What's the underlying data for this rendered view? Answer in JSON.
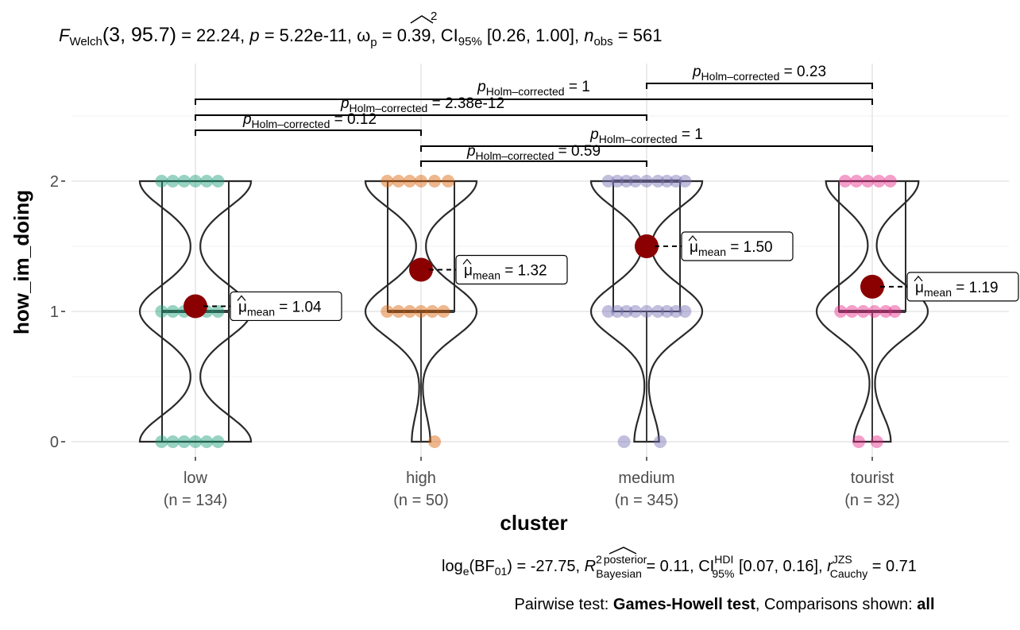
{
  "chart_data": {
    "type": "violin",
    "title": {
      "F": "F",
      "welch_sub": "Welch",
      "df": "(3, 95.7)",
      "stat": " = 22.24, ",
      "p": "p",
      "p_val": " = 5.22e-11, ",
      "omega": "ω",
      "omega_sup": "2",
      "omega_sub": "p",
      "omega_val": " = 0.39, CI",
      "ci_sub": "95%",
      "ci_val": " [0.26, 1.00], ",
      "n": "n",
      "n_sub": "obs",
      "n_val": " = 561"
    },
    "xlabel": "cluster",
    "ylabel": "how_im_doing",
    "ylim": [
      0,
      2
    ],
    "y_ticks": [
      "0",
      "1",
      "2"
    ],
    "categories": [
      {
        "name": "low",
        "n_label": "(n = 134)",
        "mean": 1.04,
        "mean_label": "1.04",
        "color": "#1B9E77",
        "q1": 0,
        "median": 1,
        "q3": 2,
        "points": [
          [
            -0.15,
            2
          ],
          [
            -0.1,
            2
          ],
          [
            -0.05,
            2
          ],
          [
            0,
            2
          ],
          [
            0.05,
            2
          ],
          [
            0.1,
            2
          ],
          [
            -0.15,
            1
          ],
          [
            -0.1,
            1
          ],
          [
            -0.05,
            1
          ],
          [
            0,
            1
          ],
          [
            0.05,
            1
          ],
          [
            0.1,
            1
          ],
          [
            -0.15,
            0
          ],
          [
            -0.1,
            0
          ],
          [
            -0.05,
            0
          ],
          [
            0,
            0
          ],
          [
            0.05,
            0
          ],
          [
            0.1,
            0
          ]
        ]
      },
      {
        "name": "high",
        "n_label": "(n = 50)",
        "mean": 1.32,
        "mean_label": "1.32",
        "color": "#D95F02",
        "q1": 1,
        "median": 1,
        "q3": 2,
        "points": [
          [
            -0.15,
            2
          ],
          [
            -0.1,
            2
          ],
          [
            -0.05,
            2
          ],
          [
            0,
            2
          ],
          [
            0.06,
            2
          ],
          [
            0.12,
            2
          ],
          [
            -0.15,
            1
          ],
          [
            -0.1,
            1
          ],
          [
            -0.05,
            1
          ],
          [
            0,
            1
          ],
          [
            0.05,
            1
          ],
          [
            0.1,
            1
          ],
          [
            0.06,
            0
          ]
        ]
      },
      {
        "name": "medium",
        "n_label": "(n = 345)",
        "mean": 1.5,
        "mean_label": "1.50",
        "color": "#7570B3",
        "q1": 1,
        "median": 2,
        "q3": 2,
        "points": [
          [
            -0.17,
            2
          ],
          [
            -0.13,
            2
          ],
          [
            -0.09,
            2
          ],
          [
            -0.05,
            2
          ],
          [
            0,
            2
          ],
          [
            0.05,
            2
          ],
          [
            0.09,
            2
          ],
          [
            0.13,
            2
          ],
          [
            0.17,
            2
          ],
          [
            -0.17,
            1
          ],
          [
            -0.13,
            1
          ],
          [
            -0.09,
            1
          ],
          [
            -0.05,
            1
          ],
          [
            0,
            1
          ],
          [
            0.05,
            1
          ],
          [
            0.09,
            1
          ],
          [
            0.13,
            1
          ],
          [
            0.17,
            1
          ],
          [
            -0.1,
            0
          ],
          [
            0.06,
            0
          ]
        ]
      },
      {
        "name": "tourist",
        "n_label": "(n = 32)",
        "mean": 1.19,
        "mean_label": "1.19",
        "color": "#E7298A",
        "q1": 1,
        "median": 1,
        "q3": 2,
        "points": [
          [
            -0.12,
            2
          ],
          [
            -0.07,
            2
          ],
          [
            -0.02,
            2
          ],
          [
            0.03,
            2
          ],
          [
            0.08,
            2
          ],
          [
            -0.14,
            1
          ],
          [
            -0.09,
            1
          ],
          [
            -0.04,
            1
          ],
          [
            0.01,
            1
          ],
          [
            0.06,
            1
          ],
          [
            0.1,
            1
          ],
          [
            -0.06,
            0
          ],
          [
            0.02,
            0
          ]
        ]
      }
    ],
    "mean_prefix": "μ",
    "mean_sub": "mean",
    "comparisons": [
      {
        "from": "low",
        "to": "tourist",
        "p": "p",
        "label_sub": "Holm–corrected",
        "value": " = 1"
      },
      {
        "from": "low",
        "to": "medium",
        "p": "p",
        "label_sub": "Holm–corrected",
        "value": " = 2.38e-12"
      },
      {
        "from": "low",
        "to": "high",
        "p": "p",
        "label_sub": "Holm–corrected",
        "value": " = 0.12"
      },
      {
        "from": "high",
        "to": "tourist",
        "p": "p",
        "label_sub": "Holm–corrected",
        "value": " = 1"
      },
      {
        "from": "high",
        "to": "medium",
        "p": "p",
        "label_sub": "Holm–corrected",
        "value": " = 0.59"
      },
      {
        "from": "medium",
        "to": "tourist",
        "p": "p",
        "label_sub": "Holm–corrected",
        "value": " = 0.23"
      }
    ],
    "subtitle": {
      "log": "log",
      "log_sub": "e",
      "bf": "(BF",
      "bf_sub": "01",
      "bf_val": ") = -27.75, ",
      "r2": "R",
      "r2_sup": "2",
      "post_sup": "posterior",
      "bayes_sub": "Bayesian",
      "r2_val": " = 0.11, CI",
      "hdi_sup": "HDI",
      "ci_sub": "95%",
      "ci_val": " [0.07, 0.16], ",
      "r": "r",
      "jzs_sup": "JZS",
      "cauchy_sub": "Cauchy",
      "r_val": " = 0.71"
    },
    "caption": {
      "prefix": "Pairwise test: ",
      "test": "Games-Howell test",
      "mid": ", Comparisons shown: ",
      "shown": "all"
    },
    "grid": true
  }
}
